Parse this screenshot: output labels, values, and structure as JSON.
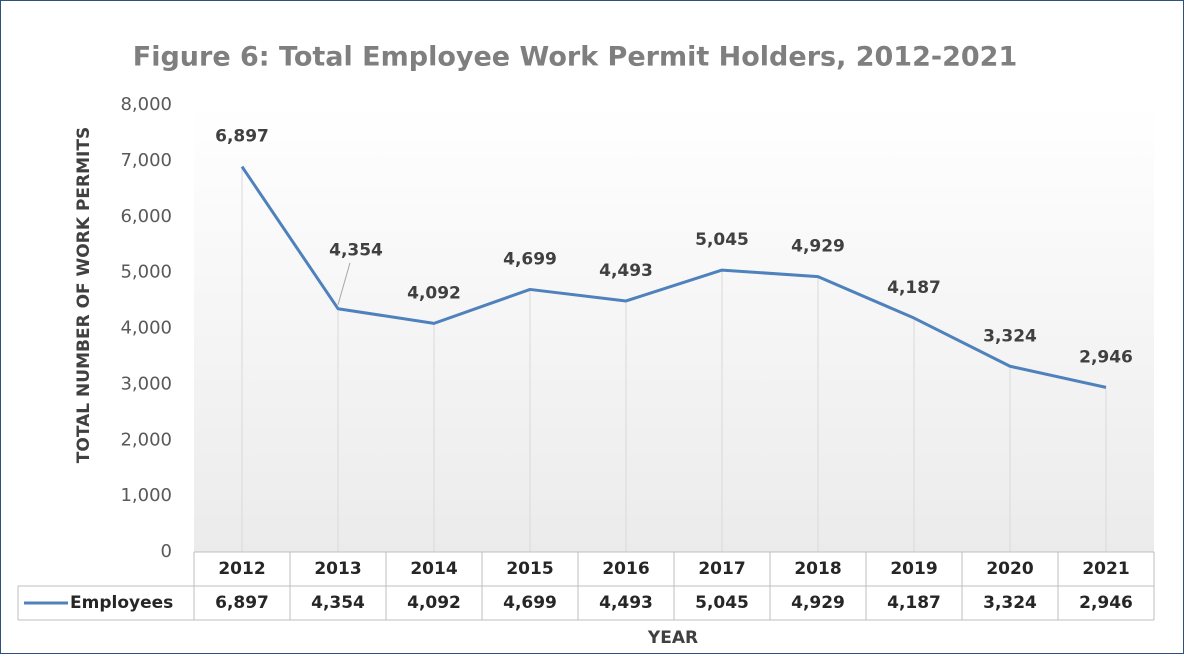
{
  "chart_data": {
    "type": "line",
    "title": "Figure 6: Total Employee Work Permit Holders, 2012-2021",
    "x_label": "YEAR",
    "y_label": "TOTAL NUMBER OF WORK PERMITS",
    "categories": [
      "2012",
      "2013",
      "2014",
      "2015",
      "2016",
      "2017",
      "2018",
      "2019",
      "2020",
      "2021"
    ],
    "series": [
      {
        "name": "Employees",
        "color": "#4f81bd",
        "values": [
          6897,
          4354,
          4092,
          4699,
          4493,
          5045,
          4929,
          4187,
          3324,
          2946
        ],
        "value_labels": [
          "6,897",
          "4,354",
          "4,092",
          "4,699",
          "4,493",
          "5,045",
          "4,929",
          "4,187",
          "3,324",
          "2,946"
        ]
      }
    ],
    "ylim": [
      0,
      8000
    ],
    "yticks": [
      0,
      {
        "value": 1000,
        "label": "1,000"
      },
      {
        "value": 2000,
        "label": "2,000"
      },
      {
        "value": 3000,
        "label": "3,000"
      },
      {
        "value": 4000,
        "label": "4,000"
      },
      {
        "value": 5000,
        "label": "5,000"
      },
      {
        "value": 6000,
        "label": "6,000"
      },
      {
        "value": 7000,
        "label": "7,000"
      },
      {
        "value": 8000,
        "label": "8,000"
      }
    ],
    "drop_lines": true,
    "data_table": true
  }
}
